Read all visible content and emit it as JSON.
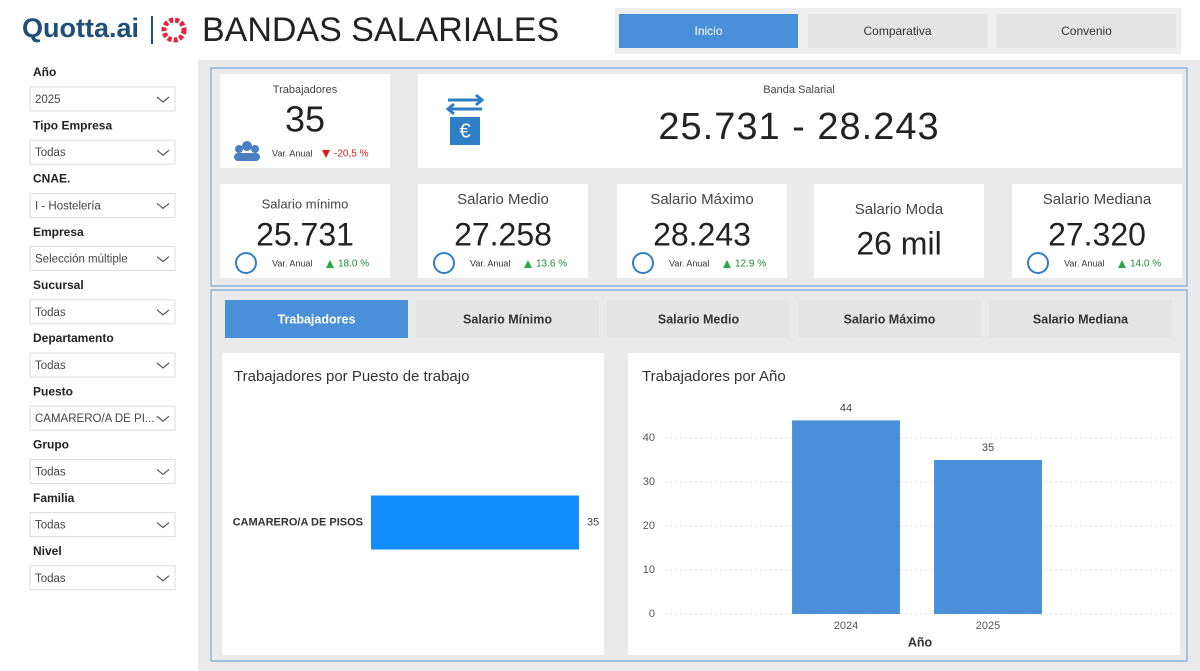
{
  "header": {
    "brand": "Quotta.ai",
    "title": "BANDAS SALARIALES",
    "nav": [
      "Inicio",
      "Comparativa",
      "Convenio"
    ],
    "nav_active": 0
  },
  "filters": [
    {
      "label": "Año",
      "value": "2025"
    },
    {
      "label": "Tipo Empresa",
      "value": "Todas"
    },
    {
      "label": "CNAE.",
      "value": "I - Hostelería"
    },
    {
      "label": "Empresa",
      "value": "Selección múltiple"
    },
    {
      "label": "Sucursal",
      "value": "Todas"
    },
    {
      "label": "Departamento",
      "value": "Todas"
    },
    {
      "label": "Puesto",
      "value": "CAMARERO/A DE PI..."
    },
    {
      "label": "Grupo",
      "value": "Todas"
    },
    {
      "label": "Familia",
      "value": "Todas"
    },
    {
      "label": "Nivel",
      "value": "Todas"
    }
  ],
  "kpis": {
    "workers": {
      "label": "Trabajadores",
      "value": "35",
      "var_label": "Var. Anual",
      "var": "-20,5 %",
      "trend": "down"
    },
    "band": {
      "label": "Banda Salarial",
      "value": "25.731 - 28.243"
    },
    "cards": [
      {
        "label": "Salario mínimo",
        "value": "25.731",
        "var_label": "Var. Anual",
        "var": "18.0 %",
        "trend": "up"
      },
      {
        "label": "Salario Medio",
        "value": "27.258",
        "var_label": "Var. Anual",
        "var": "13.6 %",
        "trend": "up"
      },
      {
        "label": "Salario Máximo",
        "value": "28.243",
        "var_label": "Var. Anual",
        "var": "12.9 %",
        "trend": "up"
      },
      {
        "label": "Salario Moda",
        "value": "26 mil"
      },
      {
        "label": "Salario Mediana",
        "value": "27.320",
        "var_label": "Var. Anual",
        "var": "14.0 %",
        "trend": "up"
      }
    ]
  },
  "tabs": {
    "items": [
      "Trabajadores",
      "Salario Mínimo",
      "Salario Medio",
      "Salario Máximo",
      "Salario Mediana"
    ],
    "active": 0
  },
  "chart_data": [
    {
      "type": "bar",
      "horizontal": true,
      "title": "Trabajadores por Puesto de trabajo",
      "categories": [
        "CAMARERO/A DE PISOS"
      ],
      "values": [
        35
      ],
      "color": "#118dff"
    },
    {
      "type": "bar",
      "title": "Trabajadores por Año",
      "categories": [
        "2024",
        "2025"
      ],
      "values": [
        44,
        35
      ],
      "color": "#4a90d9",
      "xlabel": "Año",
      "ylim": [
        0,
        44
      ],
      "yticks": [
        0,
        10,
        20,
        30,
        40
      ],
      "grid": true
    }
  ]
}
